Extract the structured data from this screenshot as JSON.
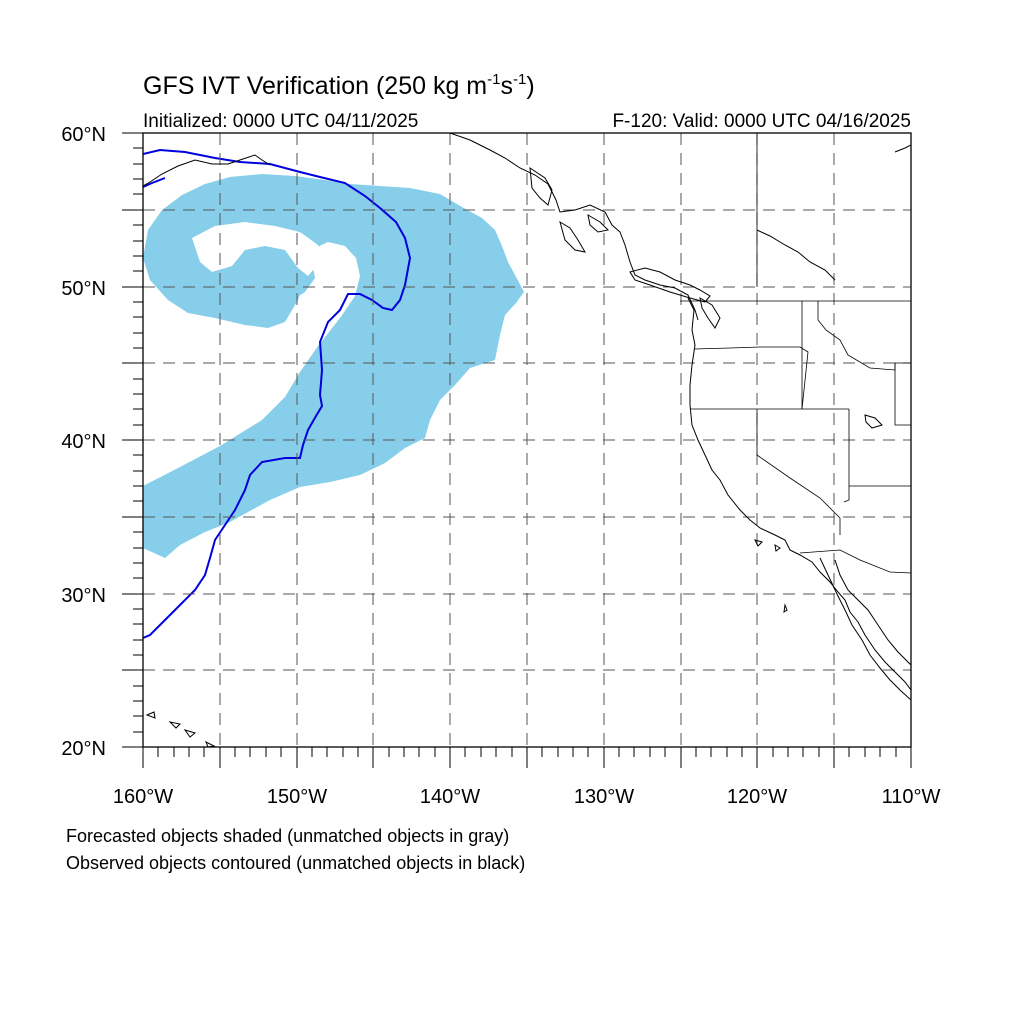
{
  "title_main": "GFS IVT Verification (250 kg m",
  "title_sup1": "-1",
  "title_mid": "s",
  "title_sup2": "-1",
  "title_end": ")",
  "initialized": "Initialized: 0000 UTC 04/11/2025",
  "valid": "F-120: Valid: 0000 UTC 04/16/2025",
  "lat_labels": [
    "60°N",
    "50°N",
    "40°N",
    "30°N",
    "20°N"
  ],
  "lon_labels": [
    "160°W",
    "150°W",
    "140°W",
    "130°W",
    "120°W",
    "110°W"
  ],
  "notes": {
    "forecast": "Forecasted objects shaded (unmatched objects in gray)",
    "observed": "Observed objects contoured (unmatched objects in black)"
  },
  "colors": {
    "forecast_fill": "#87ceeb",
    "observed_contour": "#0000dd",
    "coastline": "#000000",
    "grid": "#555555"
  },
  "map_extent": {
    "lon": [
      -160,
      -110
    ],
    "lat": [
      20,
      60
    ]
  }
}
